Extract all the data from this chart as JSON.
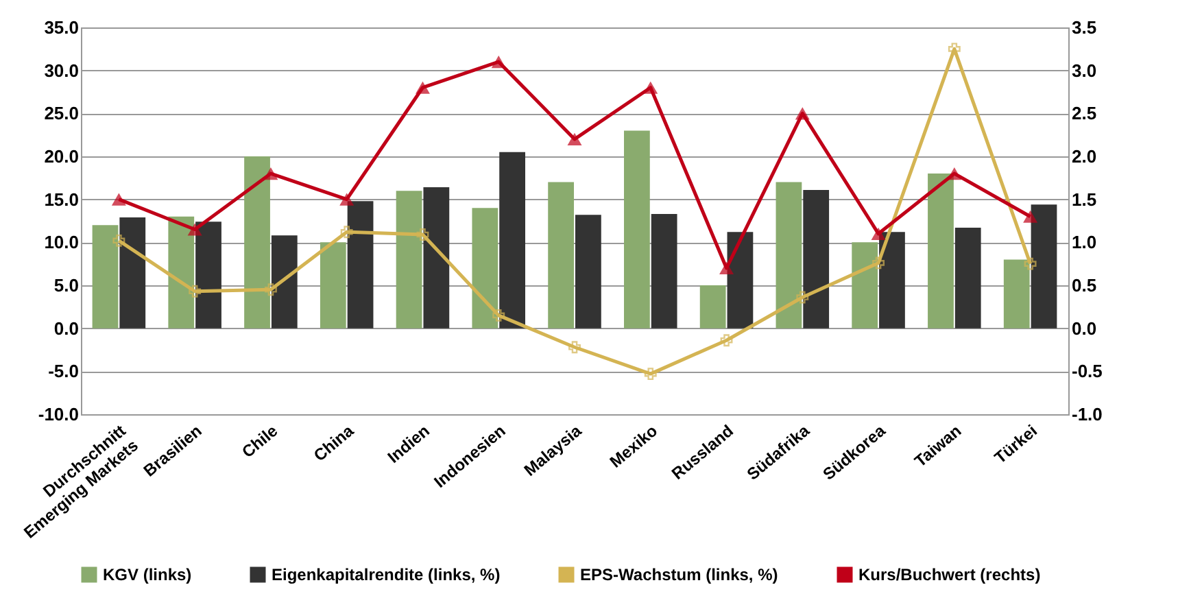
{
  "chart_data": {
    "type": "bar",
    "categories": [
      "Durchschnitt\nEmerging Markets",
      "Brasilien",
      "Chile",
      "China",
      "Indien",
      "Indonesien",
      "Malaysia",
      "Mexiko",
      "Russland",
      "Südafrika",
      "Südkorea",
      "Taiwan",
      "Türkei"
    ],
    "series": [
      {
        "name": "KGV (links)",
        "color": "#8aab6e",
        "values": [
          12,
          13,
          20,
          10,
          16,
          14,
          17,
          23,
          5,
          17,
          10,
          18,
          8
        ]
      },
      {
        "name": "Eigenkapitalrendite (links, %)",
        "color": "#333333",
        "values": [
          12.9,
          12.4,
          10.8,
          14.8,
          16.4,
          20.5,
          13.2,
          13.3,
          11.2,
          16.1,
          11.2,
          11.7,
          14.4
        ]
      },
      {
        "name": "EPS-Wachstum (links, %)",
        "type": "line",
        "color": "#d4b453",
        "marker": "cross",
        "values": [
          10.2,
          4.3,
          4.5,
          11.2,
          10.9,
          1.5,
          -2.2,
          -5.3,
          -1.4,
          3.6,
          7.6,
          32.5,
          7.5
        ]
      },
      {
        "name": "Kurs/Buchwert (rechts)",
        "type": "line",
        "axis": "y2",
        "color": "#c00018",
        "marker": "triangle",
        "values": [
          1.5,
          1.15,
          1.8,
          1.5,
          2.8,
          3.1,
          2.2,
          2.8,
          0.7,
          2.5,
          1.1,
          1.8,
          1.3
        ]
      }
    ],
    "ylim": [
      -10,
      35
    ],
    "yticks": [
      {
        "value": -10,
        "label": "-10.0"
      },
      {
        "value": -5,
        "label": "-5.0"
      },
      {
        "value": 0,
        "label": "0.0"
      },
      {
        "value": 5,
        "label": "5.0"
      },
      {
        "value": 10,
        "label": "10.0"
      },
      {
        "value": 15,
        "label": "15.0"
      },
      {
        "value": 20,
        "label": "20.0"
      },
      {
        "value": 25,
        "label": "25.0"
      },
      {
        "value": 30,
        "label": "30.0"
      },
      {
        "value": 35,
        "label": "35.0"
      }
    ],
    "y2lim": [
      -1,
      3.5
    ],
    "y2ticks": [
      {
        "value": -1,
        "label": "-1.0"
      },
      {
        "value": -0.5,
        "label": "-0.5"
      },
      {
        "value": 0,
        "label": "0.0"
      },
      {
        "value": 0.5,
        "label": "0.5"
      },
      {
        "value": 1,
        "label": "1.0"
      },
      {
        "value": 1.5,
        "label": "1.5"
      },
      {
        "value": 2,
        "label": "2.0"
      },
      {
        "value": 2.5,
        "label": "2.5"
      },
      {
        "value": 3,
        "label": "3.0"
      },
      {
        "value": 3.5,
        "label": "3.5"
      }
    ],
    "grid": "y",
    "legend": "bottom"
  }
}
